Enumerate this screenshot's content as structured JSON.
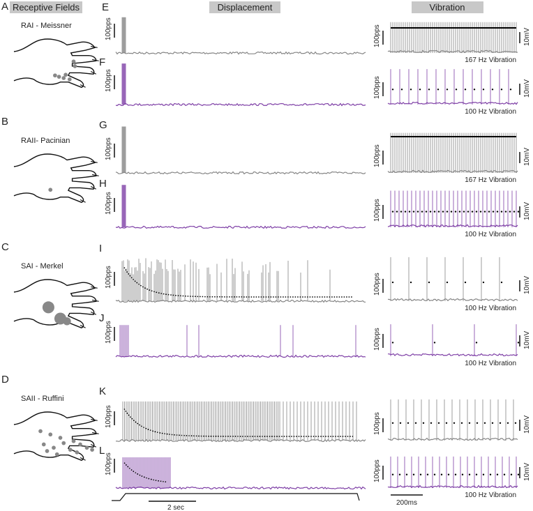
{
  "headers": [
    "Receptive Fields",
    "Displacement",
    "Vibration"
  ],
  "rows": [
    {
      "letter": "A",
      "label": "RAI -  Meissner"
    },
    {
      "letter": "B",
      "label": "RAII-  Pacinian"
    },
    {
      "letter": "C",
      "label": "SAI -  Merkel"
    },
    {
      "letter": "D",
      "label": "SAII -  Ruffini"
    }
  ],
  "traces": [
    {
      "letter": "E",
      "scale": "100pps",
      "vib_scale": "100pps",
      "vib_voltage": "10mV",
      "vib_label": "167 Hz Vibration"
    },
    {
      "letter": "F",
      "scale": "100pps",
      "vib_scale": "100pps",
      "vib_voltage": "10mV",
      "vib_label": "100 Hz Vibration"
    },
    {
      "letter": "G",
      "scale": "100pps",
      "vib_scale": "100pps",
      "vib_voltage": "10mV",
      "vib_label": "167 Hz Vibration"
    },
    {
      "letter": "H",
      "scale": "100pps",
      "vib_scale": "100pps",
      "vib_voltage": "10mV",
      "vib_label": "100 Hz Vibration"
    },
    {
      "letter": "I",
      "scale": "100pps",
      "vib_scale": "100pps",
      "vib_voltage": "10mV",
      "vib_label": "100 Hz Vibration"
    },
    {
      "letter": "J",
      "scale": "100pps",
      "vib_scale": "100pps",
      "vib_voltage": "10mV",
      "vib_label": "100 Hz Vibration"
    },
    {
      "letter": "K",
      "scale": "100pps",
      "vib_scale": "100pps",
      "vib_voltage": "10mV"
    },
    {
      "letter": "L",
      "scale": "100pps",
      "vib_scale": "100pps",
      "vib_voltage": "10mV",
      "vib_label": "100 Hz Vibration"
    }
  ],
  "time_scales": [
    "2 sec",
    "200ms"
  ]
}
